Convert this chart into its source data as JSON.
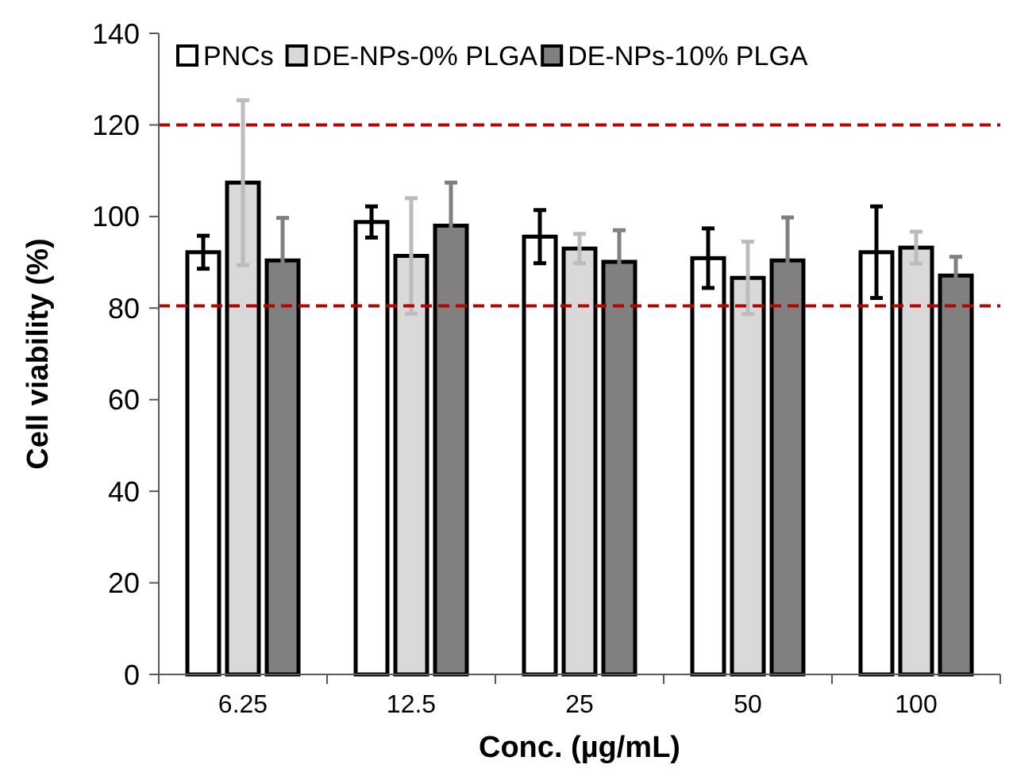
{
  "chart_data": {
    "type": "bar",
    "xlabel": "Conc. (µg/mL)",
    "ylabel": "Cell viability (%)",
    "categories": [
      "6.25",
      "12.5",
      "25",
      "50",
      "100"
    ],
    "series": [
      {
        "name": "PNCs",
        "color": "#ffffff",
        "values": [
          92.2,
          98.8,
          95.6,
          90.9,
          92.2
        ],
        "errors": [
          3.6,
          3.4,
          5.8,
          6.5,
          10
        ]
      },
      {
        "name": "DE-NPs-0% PLGA",
        "color": "#d9d9d9",
        "values": [
          107.4,
          91.4,
          93,
          86.6,
          93.2
        ],
        "errors": [
          18,
          12.6,
          3.2,
          7.9,
          3.5
        ]
      },
      {
        "name": "DE-NPs-10% PLGA",
        "color": "#808080",
        "values": [
          90.4,
          98,
          90.1,
          90.4,
          87.1
        ],
        "errors": [
          9.3,
          9.4,
          6.9,
          9.4,
          4.1
        ]
      }
    ],
    "ylim": [
      0,
      140
    ],
    "yticks": [
      0,
      20,
      40,
      60,
      80,
      100,
      120,
      140
    ],
    "grid": false,
    "legend": "top left",
    "ref_lines": [
      {
        "axis": "y",
        "value": 80.5,
        "color": "#c00000",
        "line_style": "dashed"
      },
      {
        "axis": "y",
        "value": 120,
        "color": "#c00000",
        "line_style": "dashed"
      }
    ]
  }
}
